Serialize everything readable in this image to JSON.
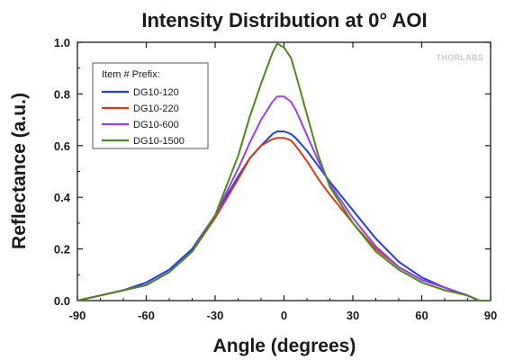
{
  "watermark": "THORLABS",
  "chart_data": {
    "type": "line",
    "title": "Intensity Distribution at 0° AOI",
    "xlabel": "Angle (degrees)",
    "ylabel": "Reflectance (a.u.)",
    "xlim": [
      -90,
      90
    ],
    "ylim": [
      0.0,
      1.0
    ],
    "xticks": [
      -90,
      -60,
      -30,
      0,
      30,
      60,
      90
    ],
    "yticks": [
      0.0,
      0.2,
      0.4,
      0.6,
      0.8,
      1.0
    ],
    "xtick_labels": [
      "-90",
      "-60",
      "-30",
      "0",
      "30",
      "60",
      "90"
    ],
    "ytick_labels": [
      "0.0",
      "0.2",
      "0.4",
      "0.6",
      "0.8",
      "1.0"
    ],
    "grid": false,
    "legend": {
      "title": "Item # Prefix:",
      "placement": "top-left"
    },
    "series": [
      {
        "name": "DG10-120",
        "color": "#1f3fe0",
        "x": [
          -90,
          -80,
          -70,
          -60,
          -50,
          -40,
          -30,
          -20,
          -15,
          -10,
          -5,
          -3,
          0,
          3,
          5,
          10,
          15,
          20,
          30,
          40,
          50,
          60,
          70,
          80,
          85,
          88,
          90
        ],
        "y": [
          0.0,
          0.02,
          0.04,
          0.07,
          0.12,
          0.2,
          0.33,
          0.48,
          0.55,
          0.6,
          0.645,
          0.655,
          0.655,
          0.645,
          0.63,
          0.58,
          0.52,
          0.46,
          0.35,
          0.24,
          0.15,
          0.09,
          0.05,
          0.02,
          0.0,
          0.0,
          0.0
        ]
      },
      {
        "name": "DG10-220",
        "color": "#d43c1c",
        "x": [
          -90,
          -80,
          -70,
          -60,
          -50,
          -40,
          -30,
          -20,
          -15,
          -10,
          -5,
          -3,
          0,
          3,
          5,
          10,
          15,
          20,
          30,
          40,
          50,
          60,
          70,
          80,
          85,
          88,
          90
        ],
        "y": [
          0.0,
          0.02,
          0.04,
          0.06,
          0.11,
          0.19,
          0.32,
          0.47,
          0.55,
          0.6,
          0.625,
          0.63,
          0.63,
          0.62,
          0.6,
          0.54,
          0.47,
          0.41,
          0.3,
          0.2,
          0.13,
          0.08,
          0.05,
          0.02,
          0.0,
          0.0,
          0.0
        ]
      },
      {
        "name": "DG10-600",
        "color": "#9a3ff0",
        "x": [
          -90,
          -80,
          -70,
          -60,
          -50,
          -40,
          -30,
          -20,
          -15,
          -10,
          -5,
          -3,
          0,
          3,
          5,
          10,
          15,
          20,
          30,
          40,
          50,
          60,
          70,
          80,
          85,
          88,
          90
        ],
        "y": [
          0.0,
          0.02,
          0.04,
          0.06,
          0.11,
          0.19,
          0.33,
          0.51,
          0.61,
          0.7,
          0.77,
          0.79,
          0.79,
          0.77,
          0.74,
          0.64,
          0.54,
          0.45,
          0.32,
          0.21,
          0.13,
          0.08,
          0.05,
          0.02,
          0.0,
          0.0,
          0.0
        ]
      },
      {
        "name": "DG10-1500",
        "color": "#4a8a1e",
        "x": [
          -90,
          -80,
          -70,
          -60,
          -50,
          -40,
          -30,
          -20,
          -15,
          -10,
          -5,
          -3,
          0,
          3,
          5,
          10,
          15,
          20,
          30,
          40,
          50,
          60,
          70,
          80,
          85,
          88,
          90
        ],
        "y": [
          0.0,
          0.02,
          0.04,
          0.06,
          0.11,
          0.19,
          0.33,
          0.56,
          0.71,
          0.84,
          0.96,
          0.995,
          0.98,
          0.94,
          0.88,
          0.72,
          0.56,
          0.44,
          0.3,
          0.19,
          0.12,
          0.07,
          0.04,
          0.02,
          0.0,
          0.0,
          0.0
        ]
      }
    ]
  }
}
